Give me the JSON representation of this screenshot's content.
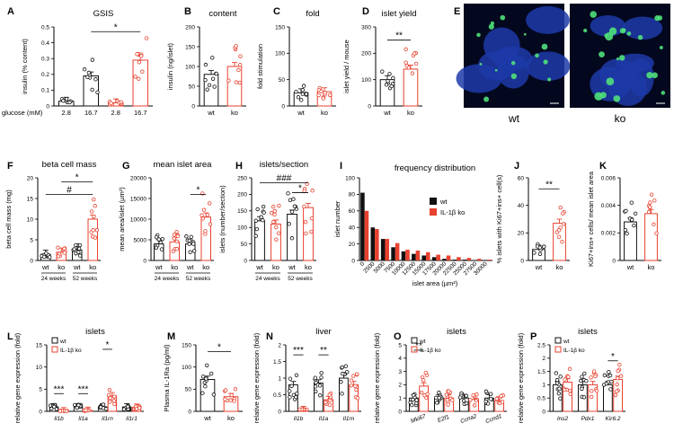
{
  "panels": [
    {
      "id": "A",
      "letter": "A",
      "title": "GSIS",
      "ylabel": "insulin (% content)",
      "ymax": 0.5,
      "yticks": [
        0,
        0.1,
        0.2,
        0.3,
        0.4,
        0.5
      ],
      "xlabels": [
        "2.8",
        "16.7",
        "2.8",
        "16.7"
      ],
      "prefix": "glucose (mM)",
      "colors": [
        "#111111",
        "#111111",
        "#e8412f",
        "#e8412f"
      ],
      "values": [
        0.03,
        0.19,
        0.02,
        0.29
      ],
      "sig": [
        {
          "from": 1,
          "to": 3,
          "text": "*",
          "y": 0.47
        }
      ],
      "legend": null
    },
    {
      "id": "B",
      "letter": "B",
      "title": "content",
      "ylabel": "insulin (ng/islet)",
      "ymax": 200,
      "yticks": [
        0,
        50,
        100,
        150,
        200
      ],
      "xlabels": [
        "wt",
        "ko"
      ],
      "colors": [
        "#111111",
        "#e8412f"
      ],
      "values": [
        80,
        100
      ],
      "sig": [],
      "legend": null
    },
    {
      "id": "C",
      "letter": "C",
      "title": "fold",
      "ylabel": "fold stimulation",
      "ymax": 150,
      "yticks": [
        0,
        50,
        100,
        150
      ],
      "xlabels": [
        "wt",
        "ko"
      ],
      "colors": [
        "#111111",
        "#e8412f"
      ],
      "values": [
        25,
        27
      ],
      "sig": [],
      "legend": null
    },
    {
      "id": "D",
      "letter": "D",
      "title": "islet yield",
      "ylabel": "islet yield / mouse",
      "ymax": 300,
      "yticks": [
        0,
        100,
        200,
        300
      ],
      "xlabels": [
        "wt",
        "ko"
      ],
      "colors": [
        "#111111",
        "#e8412f"
      ],
      "values": [
        100,
        140
      ],
      "sig": [
        {
          "from": 0,
          "to": 1,
          "text": "**",
          "y": 250
        }
      ],
      "legend": null
    },
    {
      "id": "F",
      "letter": "F",
      "title": "beta cell mass",
      "ylabel": "beta cell mass (mg)",
      "ymax": 20,
      "yticks": [
        0,
        5,
        10,
        15,
        20
      ],
      "xlabels": [
        "wt",
        "ko",
        "wt",
        "ko"
      ],
      "colors": [
        "#111111",
        "#e8412f",
        "#111111",
        "#e8412f"
      ],
      "values": [
        1.5,
        2,
        2.5,
        10
      ],
      "groups": [
        "24 weeks",
        "52 weeks"
      ],
      "sig": [
        {
          "from": 1,
          "to": 3,
          "text": "*",
          "y": 19
        },
        {
          "from": 0,
          "to": 3,
          "text": "#",
          "y": 16
        }
      ],
      "legend": null
    },
    {
      "id": "G",
      "letter": "G",
      "title": "mean islet area",
      "ylabel": "mean area/islet (µm²)",
      "ymax": 20000,
      "yticks": [
        0,
        5000,
        10000,
        15000,
        20000
      ],
      "xlabels": [
        "wt",
        "ko",
        "wt",
        "ko"
      ],
      "colors": [
        "#111111",
        "#e8412f",
        "#111111",
        "#e8412f"
      ],
      "values": [
        4000,
        4500,
        4000,
        10500
      ],
      "groups": [
        "24 weeks",
        "52 weeks"
      ],
      "sig": [
        {
          "from": 2,
          "to": 3,
          "text": "*",
          "y": 16000
        }
      ],
      "legend": null
    },
    {
      "id": "H",
      "letter": "H",
      "title": "islets/section",
      "ylabel": "islets (number/section)",
      "ymax": 250,
      "yticks": [
        0,
        50,
        100,
        150,
        200,
        250
      ],
      "xlabels": [
        "wt",
        "ko",
        "wt",
        "ko"
      ],
      "colors": [
        "#111111",
        "#e8412f",
        "#111111",
        "#e8412f"
      ],
      "values": [
        120,
        110,
        140,
        160
      ],
      "groups": [
        "24 weeks",
        "52 weeks"
      ],
      "sig": [
        {
          "from": 0,
          "to": 3,
          "text": "###",
          "y": 235
        },
        {
          "from": 2,
          "to": 3,
          "text": "*",
          "y": 205
        }
      ],
      "legend": null
    },
    {
      "id": "J",
      "letter": "J",
      "title": "",
      "ylabel": "% islets with Ki67+ins+ cell(s)",
      "ymax": 60,
      "yticks": [
        0,
        20,
        40,
        60
      ],
      "xlabels": [
        "wt",
        "ko"
      ],
      "colors": [
        "#111111",
        "#e8412f"
      ],
      "values": [
        8,
        27
      ],
      "sig": [
        {
          "from": 0,
          "to": 1,
          "text": "**",
          "y": 52
        }
      ],
      "legend": null
    },
    {
      "id": "K",
      "letter": "K",
      "title": "",
      "ylabel": "Ki67+ins+ cells/ mean islet area",
      "ymax": 0.006,
      "yticks": [
        0,
        0.002,
        0.004,
        0.006
      ],
      "xlabels": [
        "wt",
        "ko"
      ],
      "colors": [
        "#111111",
        "#e8412f"
      ],
      "values": [
        0.0028,
        0.0034
      ],
      "sig": [],
      "legend": null
    },
    {
      "id": "L",
      "letter": "L",
      "title": "islets",
      "ylabel": "relative gene expression (fold)",
      "ymax": 15,
      "yticks": [
        0,
        5,
        10,
        15
      ],
      "xlabels": [
        "Il1b",
        "Il1a",
        "Il1rn",
        "Il1r1"
      ],
      "italic": true,
      "pairs": true,
      "colors": [
        "#111111",
        "#e8412f"
      ],
      "values": [
        [
          1,
          0.1
        ],
        [
          1,
          0.2
        ],
        [
          1,
          3.5
        ],
        [
          1,
          0.9
        ]
      ],
      "sig": [
        {
          "from": 0,
          "to": 1,
          "text": "***",
          "y": 4
        },
        {
          "from": 2,
          "to": 3,
          "text": "***",
          "y": 4
        },
        {
          "from": 4,
          "to": 5,
          "text": "*",
          "y": 14
        }
      ],
      "legend": [
        "wt",
        "IL-1β ko"
      ]
    },
    {
      "id": "M",
      "letter": "M",
      "title": "",
      "ylabel": "Plasma IL-1Ra (pg/ml)",
      "ymax": 150,
      "yticks": [
        0,
        50,
        100,
        150
      ],
      "xlabels": [
        "wt",
        "ko"
      ],
      "colors": [
        "#111111",
        "#e8412f"
      ],
      "values": [
        72,
        33
      ],
      "sig": [
        {
          "from": 0,
          "to": 1,
          "text": "*",
          "y": 135
        }
      ],
      "legend": null
    },
    {
      "id": "N",
      "letter": "N",
      "title": "liver",
      "ylabel": "relative gene expression (fold)",
      "ymax": 2,
      "yticks": [
        0,
        0.5,
        1,
        1.5,
        2
      ],
      "xlabels": [
        "Il1b",
        "Il1a",
        "Il1rn"
      ],
      "italic": true,
      "pairs": true,
      "colors": [
        "#111111",
        "#e8412f"
      ],
      "values": [
        [
          0.8,
          0.05
        ],
        [
          0.85,
          0.35
        ],
        [
          1,
          0.8
        ]
      ],
      "sig": [
        {
          "from": 0,
          "to": 1,
          "text": "***",
          "y": 1.7
        },
        {
          "from": 2,
          "to": 3,
          "text": "**",
          "y": 1.7
        }
      ],
      "legend": null
    },
    {
      "id": "O",
      "letter": "O",
      "title": "islets",
      "ylabel": "relative gene expression (fold)",
      "ymax": 5,
      "yticks": [
        0,
        1,
        2,
        3,
        4,
        5
      ],
      "xlabels": [
        "Mki67",
        "E2f1",
        "Ccna2",
        "Ccnd1"
      ],
      "italic": true,
      "pairs": true,
      "colors": [
        "#111111",
        "#e8412f"
      ],
      "values": [
        [
          1,
          1.9
        ],
        [
          1,
          1.0
        ],
        [
          1,
          0.9
        ],
        [
          1,
          0.8
        ]
      ],
      "sig": [
        {
          "from": 0,
          "to": 1,
          "text": "**",
          "y": 4.6
        }
      ],
      "legend": [
        "wt",
        "IL-1β ko"
      ]
    },
    {
      "id": "P",
      "letter": "P",
      "title": "islets",
      "ylabel": "relative gene expression (fold)",
      "ymax": 2.5,
      "yticks": [
        0,
        0.5,
        1,
        1.5,
        2,
        2.5
      ],
      "xlabels": [
        "Ins2",
        "Pdx1",
        "Kir6.2"
      ],
      "italic": true,
      "pairs": true,
      "colors": [
        "#111111",
        "#e8412f"
      ],
      "values": [
        [
          1,
          1.1
        ],
        [
          1,
          1.0
        ],
        [
          1,
          1.2
        ]
      ],
      "sig": [
        {
          "from": 4,
          "to": 5,
          "text": "*",
          "y": 1.9
        }
      ],
      "legend": [
        "wt",
        "IL-1β ko"
      ]
    }
  ],
  "histogram": {
    "letter": "I",
    "title": "frequency distribution",
    "ylabel": "islet number",
    "xlabel": "islet area (µm²)",
    "ymax": 100,
    "yticks": [
      0,
      20,
      40,
      60,
      80,
      100
    ],
    "bins": [
      "0",
      "2500",
      "5000",
      "7500",
      "10000",
      "12500",
      "15000",
      "17500",
      "20000",
      "22500",
      "25000",
      "27500",
      "30000"
    ],
    "series": [
      {
        "name": "wt",
        "color": "#111111",
        "values": [
          82,
          40,
          26,
          16,
          11,
          8,
          6,
          4,
          2,
          1,
          1,
          0,
          0
        ]
      },
      {
        "name": "IL-1β ko",
        "color": "#e8412f",
        "values": [
          60,
          38,
          26,
          21,
          13,
          12,
          10,
          7,
          6,
          4,
          3,
          2,
          1
        ]
      }
    ]
  },
  "images": {
    "letter": "E",
    "left_label": "wt",
    "right_label": "ko"
  }
}
